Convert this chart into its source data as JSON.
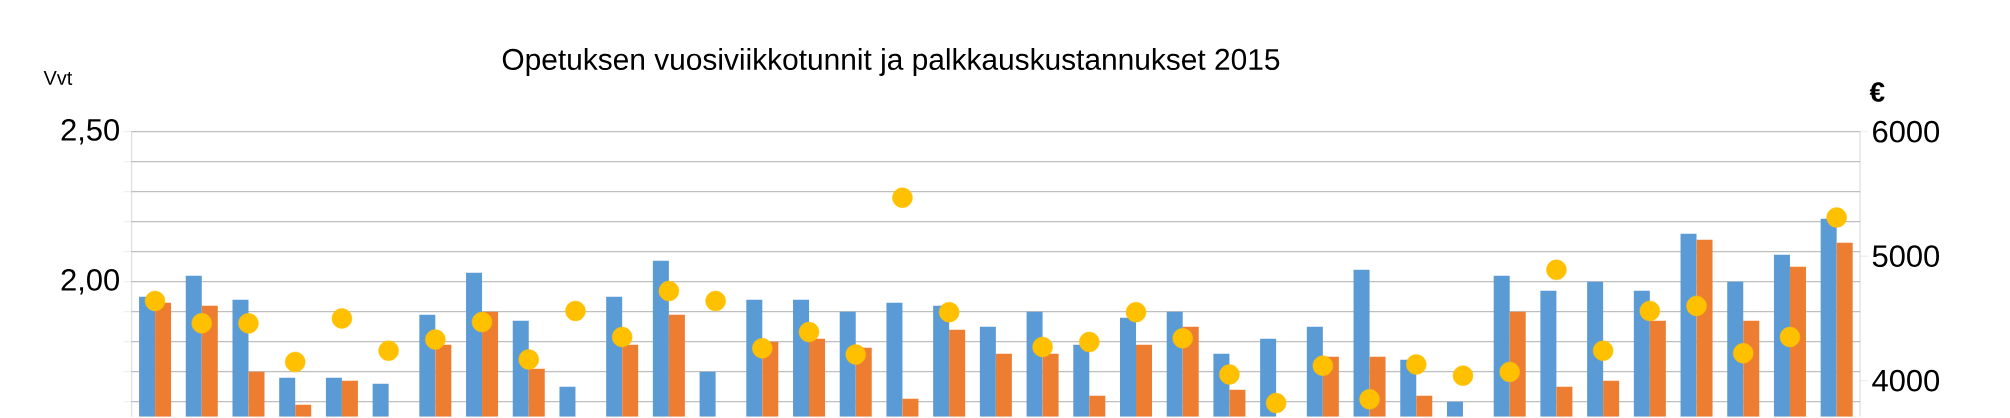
{
  "chart_data": {
    "type": "bar",
    "title": "Opetuksen vuosiviikkotunnit ja palkkauskustannukset 2015",
    "ylabel": "Vvt",
    "y2label": "€",
    "categories": [
      null,
      null,
      null,
      null,
      null,
      null,
      null,
      null,
      null,
      null,
      null,
      null,
      null,
      null,
      null,
      null,
      null,
      null,
      null,
      null,
      null,
      null,
      null,
      null,
      null,
      null,
      null,
      null,
      null,
      null,
      null,
      null,
      null,
      null,
      null,
      null,
      null
    ],
    "series": [
      {
        "color": "#5b9bd5",
        "values": [
          1.95,
          2.02,
          1.94,
          1.68,
          1.68,
          1.66,
          1.89,
          2.03,
          1.87,
          1.65,
          1.95,
          2.07,
          1.7,
          1.94,
          1.94,
          1.9,
          1.93,
          1.92,
          1.85,
          1.9,
          1.79,
          1.88,
          1.9,
          1.76,
          1.81,
          1.85,
          2.04,
          1.74,
          1.6,
          2.02,
          1.97,
          2.0,
          1.97,
          2.16,
          2.0,
          2.09,
          2.21
        ]
      },
      {
        "color": "#ed7d31",
        "values": [
          1.93,
          1.92,
          1.7,
          1.59,
          1.67,
          null,
          1.79,
          1.9,
          1.71,
          null,
          1.79,
          1.89,
          null,
          1.8,
          1.81,
          1.78,
          1.61,
          1.84,
          1.76,
          1.76,
          1.62,
          1.79,
          1.85,
          1.64,
          null,
          1.75,
          1.75,
          1.62,
          null,
          1.9,
          1.65,
          1.67,
          1.87,
          2.14,
          1.87,
          2.05,
          2.13
        ]
      },
      {
        "type": "scatter",
        "axis": "y2",
        "marker": "circle",
        "color": "#ffc000",
        "values": [
          4640,
          4460,
          4460,
          4150,
          4500,
          4240,
          4330,
          4470,
          4170,
          4560,
          4350,
          4720,
          4640,
          4260,
          4390,
          4210,
          5470,
          4550,
          null,
          4270,
          4310,
          4550,
          4340,
          4050,
          3820,
          4120,
          3850,
          4130,
          4040,
          4070,
          4890,
          4240,
          4560,
          4600,
          4220,
          4350,
          5310
        ]
      }
    ],
    "ylim": [
      1.55,
      2.5
    ],
    "yticks": [
      {
        "value": 1.6,
        "label": null
      },
      {
        "value": 1.7,
        "label": null
      },
      {
        "value": 1.8,
        "label": null
      },
      {
        "value": 1.9,
        "label": null
      },
      {
        "value": 2.0,
        "label": "2,00"
      },
      {
        "value": 2.1,
        "label": null
      },
      {
        "value": 2.2,
        "label": null
      },
      {
        "value": 2.3,
        "label": null
      },
      {
        "value": 2.4,
        "label": null
      },
      {
        "value": 2.5,
        "label": "2,50"
      }
    ],
    "y2lim": [
      3710,
      6000
    ],
    "y2ticks": [
      4000,
      5000,
      6000
    ],
    "grid": "y"
  }
}
